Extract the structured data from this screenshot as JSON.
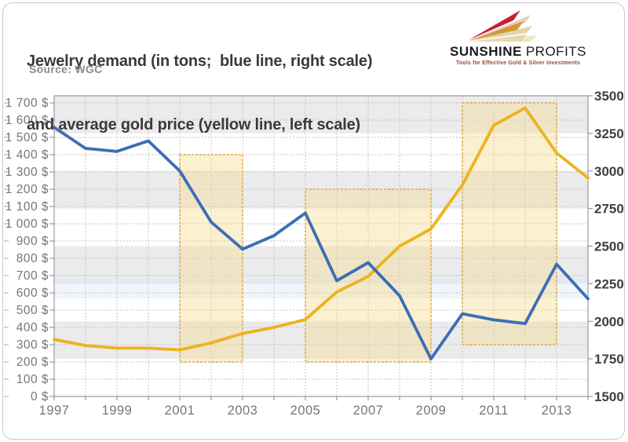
{
  "header": {
    "title_line1": "Jewelry demand (in tons;  blue line, right scale)",
    "title_line2": "and average gold price (yellow line, left scale)",
    "source": "Source: WGC"
  },
  "logo": {
    "name_bold": "SUNSHINE",
    "name_light": "PROFITS",
    "tagline": "Tools for Effective Gold & Silver Investments"
  },
  "chart_data": {
    "type": "line",
    "title": "Jewelry demand (in tons; blue line, right scale) and average gold price (yellow line, left scale)",
    "source": "WGC",
    "x": [
      1997,
      1998,
      1999,
      2000,
      2001,
      2002,
      2003,
      2004,
      2005,
      2006,
      2007,
      2008,
      2009,
      2010,
      2011,
      2012,
      2013,
      2014
    ],
    "series": [
      {
        "name": "Average gold price (yellow line, left scale, $)",
        "axis": "left",
        "color": "#edb31d",
        "values": [
          330,
          295,
          280,
          280,
          270,
          310,
          365,
          400,
          445,
          605,
          695,
          870,
          970,
          1225,
          1570,
          1670,
          1410,
          1265
        ]
      },
      {
        "name": "Jewelry demand (blue line, right scale, tons)",
        "axis": "right",
        "color": "#3b6eb5",
        "values": [
          3290,
          3150,
          3130,
          3200,
          3000,
          2660,
          2480,
          2570,
          2720,
          2270,
          2390,
          2170,
          1750,
          2050,
          2010,
          1985,
          2380,
          2150
        ]
      }
    ],
    "left_axis": {
      "min": 0,
      "max": 1700,
      "step": 100,
      "labels": [
        "0 $",
        "100 $",
        "200 $",
        "300 $",
        "400 $",
        "500 $",
        "600 $",
        "700 $",
        "800 $",
        "900 $",
        "1 000 $",
        "1 100 $",
        "1 200 $",
        "1 300 $",
        "1 400 $",
        "1 500 $",
        "1 600 $",
        "1 700 $"
      ]
    },
    "right_axis": {
      "min": 1500,
      "max": 3500,
      "step": 250,
      "labels": [
        "1500",
        "1750",
        "2000",
        "2250",
        "2500",
        "2750",
        "3000",
        "3250",
        "3500"
      ]
    },
    "x_axis": {
      "label_years": [
        1997,
        1999,
        2001,
        2003,
        2005,
        2007,
        2009,
        2011,
        2013
      ],
      "labels": [
        "1997",
        "1999",
        "2001",
        "2003",
        "2005",
        "2007",
        "2009",
        "2011",
        "2013"
      ]
    },
    "highlight_regions": [
      {
        "from_year": 2001,
        "to_year": 2003,
        "from_value": 200,
        "to_value": 1400,
        "scale": "left"
      },
      {
        "from_year": 2005,
        "to_year": 2009,
        "from_value": 200,
        "to_value": 1200,
        "scale": "left"
      },
      {
        "from_year": 2010,
        "to_year": 2013,
        "from_value": 300,
        "to_value": 1700,
        "scale": "left"
      }
    ],
    "highlight_band": {
      "scale": "right",
      "from_value": 2150,
      "to_value": 2280
    },
    "grid": {
      "style": "dashed",
      "h_step_left_scale": 100,
      "v_step_years": 1
    },
    "background_bands": {
      "aligned_to": "right_axis",
      "step": 250,
      "top_band": "gray"
    },
    "legend_position": "none"
  },
  "colors": {
    "gold_line": "#edb31d",
    "blue_line": "#3b6eb5",
    "region_fill": "#f5db8c",
    "region_border": "#dfa93e",
    "band_fill": "#d9e6f7",
    "stripe_gray": "#ebebee",
    "stripe_white": "#ffffff",
    "grid": "#c3c3c7",
    "axis": "#9b9b9f",
    "title_text": "#3a3a3c",
    "muted_text": "#8b8b8e",
    "left_label_text": "#76767a",
    "right_label_text": "#3f3f42",
    "logo_red": "#c32032",
    "logo_gold": "#d3992f",
    "logo_pale": "#e7d9ad",
    "tagline_text": "#9c4636"
  }
}
